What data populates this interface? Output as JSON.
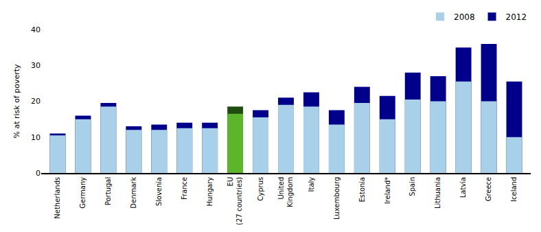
{
  "chart_data": {
    "type": "bar",
    "categories": [
      "Netherlands",
      "Germany",
      "Portugal",
      "Denmark",
      "Slovenia",
      "France",
      "Hungary",
      "EU\n(27 countries)",
      "Cyprus",
      "United\nKingdom",
      "Italy",
      "Luxembourg",
      "Estonia",
      "Ireland*",
      "Spain",
      "Lithuania",
      "Latvia",
      "Greece",
      "Iceland"
    ],
    "series": [
      {
        "name": "2008",
        "colors": [
          "#a8d0e8",
          "#a8d0e8",
          "#a8d0e8",
          "#a8d0e8",
          "#a8d0e8",
          "#a8d0e8",
          "#a8d0e8",
          "#5db52b",
          "#a8d0e8",
          "#a8d0e8",
          "#a8d0e8",
          "#a8d0e8",
          "#a8d0e8",
          "#a8d0e8",
          "#a8d0e8",
          "#a8d0e8",
          "#a8d0e8",
          "#a8d0e8",
          "#a8d0e8"
        ],
        "values": [
          10.5,
          15.0,
          18.5,
          12.0,
          12.0,
          12.5,
          12.5,
          16.5,
          15.5,
          19.0,
          18.5,
          13.5,
          19.5,
          15.0,
          20.5,
          20.0,
          25.5,
          20.0,
          10.0
        ]
      },
      {
        "name": "2012",
        "colors": [
          "#00008b",
          "#00008b",
          "#00008b",
          "#00008b",
          "#00008b",
          "#00008b",
          "#00008b",
          "#1e4d0f",
          "#00008b",
          "#00008b",
          "#00008b",
          "#00008b",
          "#00008b",
          "#00008b",
          "#00008b",
          "#00008b",
          "#00008b",
          "#00008b",
          "#00008b"
        ],
        "values": [
          11.0,
          16.0,
          19.5,
          13.0,
          13.5,
          14.0,
          14.0,
          18.5,
          17.5,
          21.0,
          22.5,
          17.5,
          24.0,
          21.5,
          28.0,
          27.0,
          35.0,
          36.0,
          25.5
        ]
      }
    ],
    "ylabel": "% at risk of poverty",
    "ylim": [
      0,
      40
    ],
    "yticks": [
      0,
      10,
      20,
      30,
      40
    ],
    "grid": false,
    "legend": "upper right"
  }
}
